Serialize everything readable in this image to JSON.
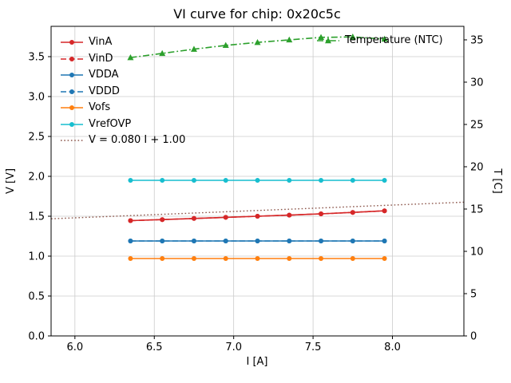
{
  "chart_data": {
    "type": "line",
    "title": "VI curve for chip: 0x20c5c",
    "xlabel": "I [A]",
    "ylabel_left": "V [V]",
    "ylabel_right": "T [C]",
    "xlim": [
      5.85,
      8.45
    ],
    "ylim_left": [
      0.0,
      3.88
    ],
    "ylim_right": [
      0.0,
      36.6
    ],
    "xticks": [
      6.0,
      6.5,
      7.0,
      7.5,
      8.0
    ],
    "yticks_left": [
      0.0,
      0.5,
      1.0,
      1.5,
      2.0,
      2.5,
      3.0,
      3.5
    ],
    "yticks_right": [
      0,
      5,
      10,
      15,
      20,
      25,
      30,
      35
    ],
    "grid": true,
    "legend_position": "upper left",
    "x": [
      6.35,
      6.55,
      6.75,
      6.95,
      7.15,
      7.35,
      7.55,
      7.75,
      7.95
    ],
    "series": [
      {
        "name": "VinA",
        "axis": "left",
        "color": "#d62728",
        "linestyle": "solid",
        "marker": "circle",
        "values": [
          1.445,
          1.458,
          1.472,
          1.486,
          1.5,
          1.514,
          1.53,
          1.548,
          1.568
        ]
      },
      {
        "name": "VinD",
        "axis": "left",
        "color": "#d62728",
        "linestyle": "dashed",
        "marker": "circle",
        "values": [
          1.445,
          1.458,
          1.472,
          1.486,
          1.5,
          1.514,
          1.53,
          1.548,
          1.568
        ]
      },
      {
        "name": "VDDA",
        "axis": "left",
        "color": "#1f77b4",
        "linestyle": "solid",
        "marker": "circle",
        "values": [
          1.19,
          1.19,
          1.19,
          1.19,
          1.19,
          1.19,
          1.19,
          1.19,
          1.19
        ]
      },
      {
        "name": "VDDD",
        "axis": "left",
        "color": "#1f77b4",
        "linestyle": "dashed",
        "marker": "circle",
        "values": [
          1.19,
          1.19,
          1.19,
          1.19,
          1.19,
          1.19,
          1.19,
          1.19,
          1.19
        ]
      },
      {
        "name": "Vofs",
        "axis": "left",
        "color": "#ff7f0e",
        "linestyle": "solid",
        "marker": "circle",
        "values": [
          0.97,
          0.97,
          0.97,
          0.97,
          0.97,
          0.97,
          0.97,
          0.97,
          0.97
        ]
      },
      {
        "name": "VrefOVP",
        "axis": "left",
        "color": "#17becf",
        "linestyle": "solid",
        "marker": "circle",
        "values": [
          1.95,
          1.95,
          1.95,
          1.95,
          1.95,
          1.95,
          1.95,
          1.95,
          1.95
        ]
      },
      {
        "name": "Temperature (NTC)",
        "axis": "right",
        "color": "#2ca02c",
        "linestyle": "dashdot",
        "marker": "triangle",
        "values": [
          32.9,
          33.4,
          33.9,
          34.35,
          34.7,
          35.0,
          35.3,
          35.35,
          35.1
        ]
      }
    ],
    "fit": {
      "label": "V = 0.080 I + 1.00",
      "slope": 0.08,
      "intercept": 1.0,
      "color": "#8c564b",
      "linestyle": "dotted"
    }
  }
}
